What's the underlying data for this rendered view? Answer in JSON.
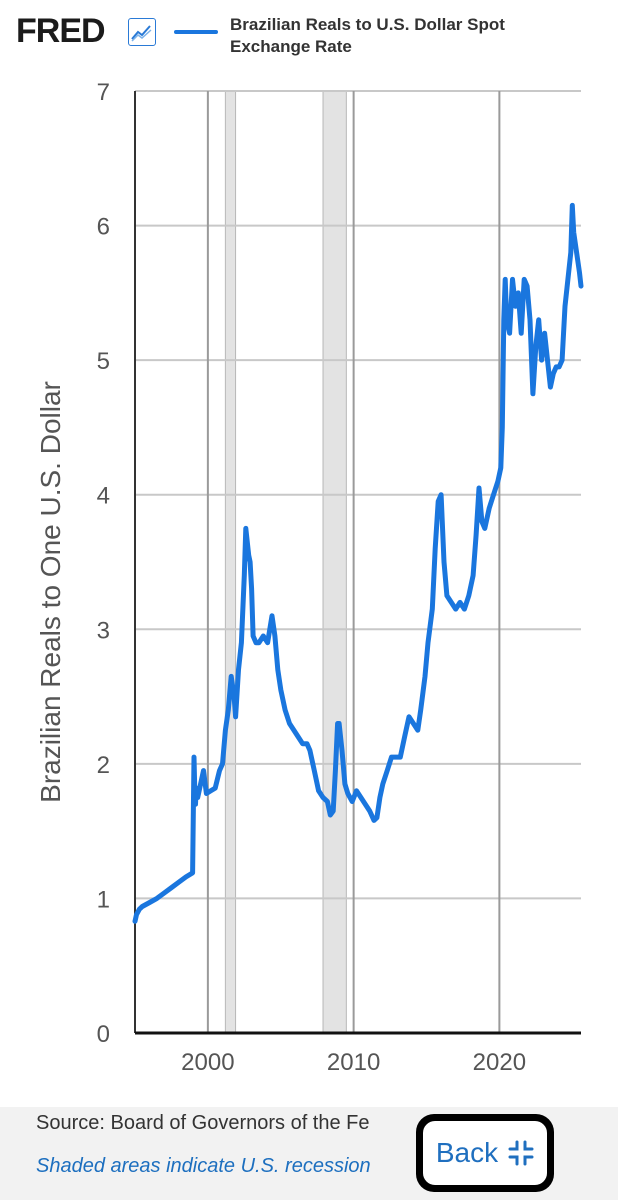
{
  "header": {
    "logo": "FRED",
    "logo_icon": "trend-chart-icon",
    "legend_label_line1": "Brazilian Reals to U.S. Dollar Spot",
    "legend_label_line2": "Exchange Rate"
  },
  "footer": {
    "source": "Source: Board of Governors of the Fe",
    "recession_note": "Shaded areas indicate U.S. recession",
    "back_label": "Back",
    "back_icon": "collapse-arrows-icon"
  },
  "colors": {
    "line": "#1a76de",
    "grid": "#c8c8c8",
    "recession": "#e3e3e3",
    "accent": "#1d6fbf"
  },
  "chart_data": {
    "type": "line",
    "title": "",
    "ylabel": "Brazilian Reals to One U.S. Dollar",
    "xlabel": "",
    "xlim": [
      1995.0,
      2025.6
    ],
    "ylim": [
      0,
      7
    ],
    "yticks": [
      0,
      1,
      2,
      3,
      4,
      5,
      6,
      7
    ],
    "xticks": [
      2000,
      2010,
      2020
    ],
    "grid": true,
    "legend": "top",
    "recessions": [
      [
        2001.2,
        2001.9
      ],
      [
        2007.9,
        2009.5
      ]
    ],
    "series": [
      {
        "name": "Brazilian Reals to U.S. Dollar Spot Exchange Rate",
        "x": [
          1995.0,
          1995.1,
          1995.3,
          1995.5,
          1996.0,
          1996.5,
          1997.0,
          1997.5,
          1998.0,
          1998.5,
          1998.95,
          1999.05,
          1999.1,
          1999.15,
          1999.2,
          1999.3,
          1999.5,
          1999.7,
          1999.9,
          2000.2,
          2000.5,
          2000.8,
          2001.0,
          2001.2,
          2001.4,
          2001.6,
          2001.8,
          2001.9,
          2002.1,
          2002.3,
          2002.5,
          2002.6,
          2002.8,
          2002.9,
          2003.0,
          2003.1,
          2003.3,
          2003.5,
          2003.8,
          2004.1,
          2004.4,
          2004.6,
          2004.8,
          2005.0,
          2005.3,
          2005.6,
          2005.9,
          2006.2,
          2006.5,
          2006.8,
          2007.0,
          2007.3,
          2007.6,
          2007.9,
          2008.2,
          2008.4,
          2008.6,
          2008.75,
          2008.9,
          2009.0,
          2009.2,
          2009.4,
          2009.6,
          2009.9,
          2010.2,
          2010.5,
          2010.8,
          2011.1,
          2011.4,
          2011.6,
          2011.8,
          2012.0,
          2012.3,
          2012.6,
          2012.9,
          2013.2,
          2013.5,
          2013.8,
          2014.1,
          2014.4,
          2014.6,
          2014.9,
          2015.1,
          2015.4,
          2015.6,
          2015.8,
          2016.0,
          2016.2,
          2016.4,
          2016.7,
          2017.0,
          2017.3,
          2017.6,
          2017.9,
          2018.2,
          2018.4,
          2018.6,
          2018.8,
          2019.0,
          2019.3,
          2019.6,
          2019.9,
          2020.1,
          2020.2,
          2020.3,
          2020.4,
          2020.5,
          2020.7,
          2020.9,
          2021.1,
          2021.3,
          2021.5,
          2021.7,
          2021.9,
          2022.1,
          2022.3,
          2022.5,
          2022.7,
          2022.9,
          2023.1,
          2023.3,
          2023.5,
          2023.7,
          2023.9,
          2024.1,
          2024.3,
          2024.5,
          2024.7,
          2024.9,
          2025.0,
          2025.1,
          2025.3,
          2025.5,
          2025.6
        ],
        "y": [
          0.83,
          0.88,
          0.92,
          0.94,
          0.97,
          1.0,
          1.04,
          1.08,
          1.12,
          1.16,
          1.19,
          2.05,
          1.8,
          1.7,
          1.82,
          1.75,
          1.85,
          1.95,
          1.78,
          1.8,
          1.82,
          1.95,
          2.0,
          2.25,
          2.4,
          2.65,
          2.5,
          2.35,
          2.7,
          2.9,
          3.4,
          3.75,
          3.55,
          3.5,
          3.3,
          2.95,
          2.9,
          2.9,
          2.95,
          2.9,
          3.1,
          2.95,
          2.7,
          2.55,
          2.4,
          2.3,
          2.25,
          2.2,
          2.15,
          2.15,
          2.1,
          1.95,
          1.8,
          1.75,
          1.72,
          1.62,
          1.65,
          1.95,
          2.3,
          2.3,
          2.1,
          1.85,
          1.78,
          1.72,
          1.8,
          1.75,
          1.7,
          1.65,
          1.58,
          1.6,
          1.75,
          1.85,
          1.95,
          2.05,
          2.05,
          2.05,
          2.2,
          2.35,
          2.3,
          2.25,
          2.4,
          2.65,
          2.9,
          3.15,
          3.6,
          3.95,
          4.0,
          3.5,
          3.25,
          3.2,
          3.15,
          3.2,
          3.15,
          3.25,
          3.4,
          3.7,
          4.05,
          3.8,
          3.75,
          3.9,
          4.0,
          4.1,
          4.2,
          4.5,
          5.3,
          5.6,
          5.3,
          5.2,
          5.6,
          5.4,
          5.5,
          5.2,
          5.6,
          5.55,
          5.3,
          4.75,
          5.1,
          5.3,
          5.0,
          5.2,
          5.0,
          4.8,
          4.9,
          4.95,
          4.95,
          5.0,
          5.4,
          5.6,
          5.8,
          6.15,
          5.95,
          5.8,
          5.65,
          5.55
        ]
      }
    ]
  }
}
